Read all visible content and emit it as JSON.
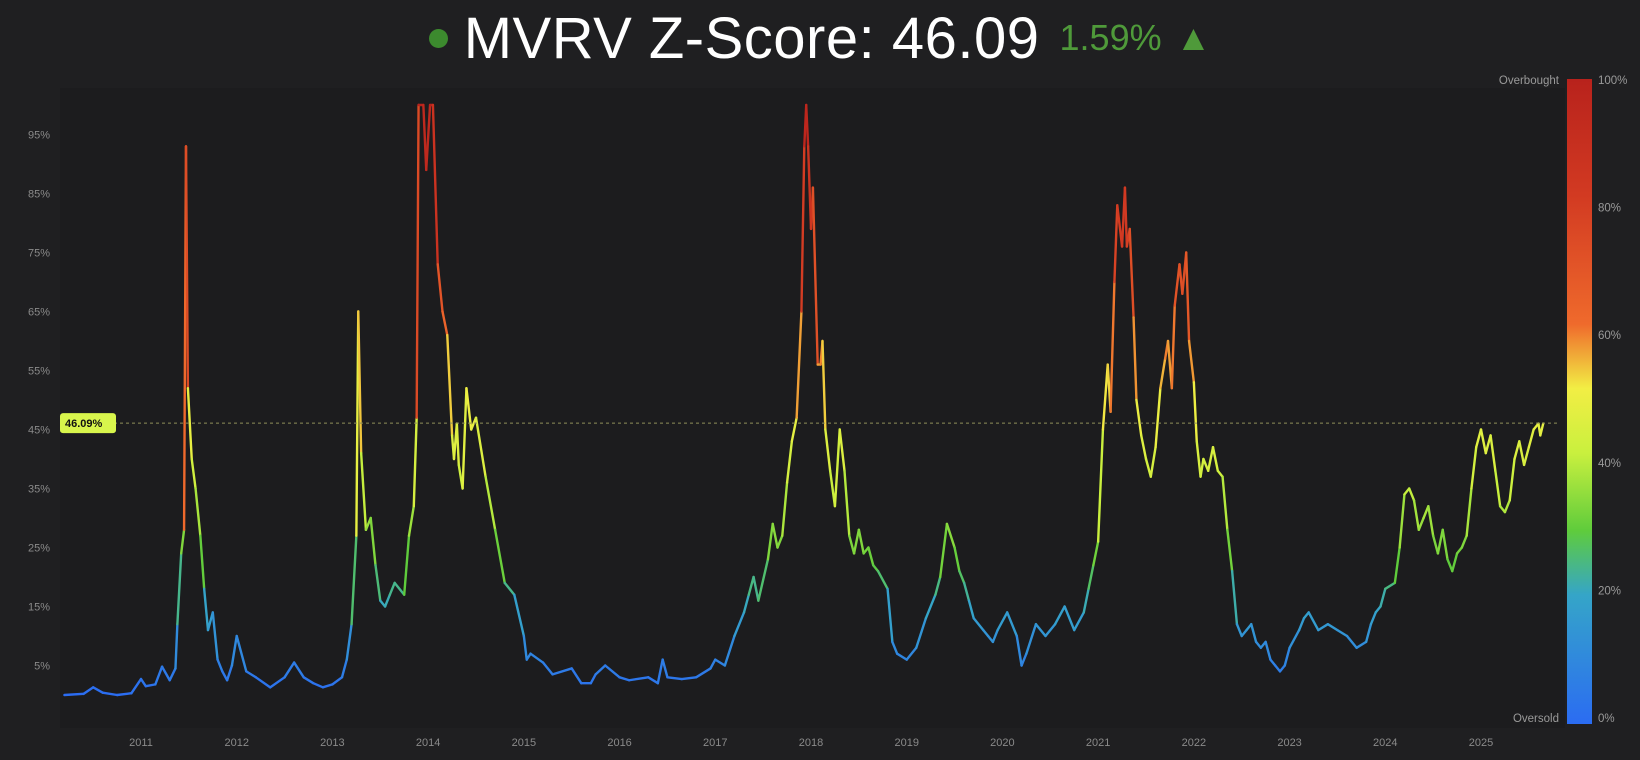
{
  "header": {
    "title_label": "MVRV Z-Score:",
    "title_value": "46.09",
    "change": "1.59%",
    "arrow": "▲",
    "accent_color": "#4f9a3a"
  },
  "chart_data": {
    "type": "line",
    "y_axis": {
      "ticks": [
        "5%",
        "15%",
        "25%",
        "35%",
        "45%",
        "55%",
        "65%",
        "75%",
        "85%",
        "95%"
      ],
      "ylim": [
        0,
        100
      ]
    },
    "x_axis": {
      "ticks": [
        "2011",
        "2012",
        "2013",
        "2014",
        "2015",
        "2016",
        "2017",
        "2018",
        "2019",
        "2020",
        "2021",
        "2022",
        "2023",
        "2024",
        "2025"
      ],
      "xlim": [
        2010.2,
        2025.85
      ]
    },
    "current_marker": {
      "value": 46.09,
      "label": "46.09%"
    },
    "colorbar": {
      "top_label": "Overbought",
      "bottom_label": "Oversold",
      "ticks": [
        "100%",
        "80%",
        "60%",
        "40%",
        "20%",
        "0%"
      ]
    },
    "colors": {
      "blue": "#2b6cf2",
      "green": "#5fcc3c",
      "yellow": "#f2ee44",
      "orange": "#ef6a2c",
      "red": "#b8221c"
    },
    "series": [
      {
        "points": [
          [
            2010.2,
            0
          ],
          [
            2010.4,
            0.2
          ],
          [
            2010.5,
            1.3
          ],
          [
            2010.6,
            0.4
          ],
          [
            2010.75,
            0
          ],
          [
            2010.9,
            0.3
          ],
          [
            2011.0,
            2.7
          ],
          [
            2011.05,
            1.5
          ],
          [
            2011.15,
            1.8
          ],
          [
            2011.22,
            4.8
          ],
          [
            2011.3,
            2.5
          ],
          [
            2011.36,
            4.5
          ],
          [
            2011.38,
            12
          ],
          [
            2011.42,
            24
          ],
          [
            2011.45,
            28
          ],
          [
            2011.47,
            93
          ],
          [
            2011.49,
            52
          ],
          [
            2011.53,
            40
          ],
          [
            2011.57,
            35
          ],
          [
            2011.62,
            27
          ],
          [
            2011.66,
            18
          ],
          [
            2011.7,
            11
          ],
          [
            2011.75,
            14
          ],
          [
            2011.8,
            6
          ],
          [
            2011.85,
            4
          ],
          [
            2011.9,
            2.5
          ],
          [
            2011.95,
            5
          ],
          [
            2012.0,
            10
          ],
          [
            2012.1,
            4
          ],
          [
            2012.2,
            3
          ],
          [
            2012.35,
            1.3
          ],
          [
            2012.5,
            3
          ],
          [
            2012.6,
            5.5
          ],
          [
            2012.7,
            3
          ],
          [
            2012.8,
            2
          ],
          [
            2012.9,
            1.3
          ],
          [
            2013.0,
            1.8
          ],
          [
            2013.1,
            3
          ],
          [
            2013.15,
            6
          ],
          [
            2013.2,
            12
          ],
          [
            2013.25,
            27
          ],
          [
            2013.27,
            65
          ],
          [
            2013.3,
            41
          ],
          [
            2013.35,
            28
          ],
          [
            2013.4,
            30
          ],
          [
            2013.45,
            22
          ],
          [
            2013.5,
            16
          ],
          [
            2013.55,
            15
          ],
          [
            2013.6,
            17
          ],
          [
            2013.65,
            19
          ],
          [
            2013.75,
            17
          ],
          [
            2013.8,
            27
          ],
          [
            2013.85,
            32
          ],
          [
            2013.88,
            47
          ],
          [
            2013.9,
            100
          ],
          [
            2013.95,
            100
          ],
          [
            2013.98,
            89
          ],
          [
            2014.02,
            100
          ],
          [
            2014.05,
            100
          ],
          [
            2014.1,
            73
          ],
          [
            2014.15,
            65
          ],
          [
            2014.2,
            61
          ],
          [
            2014.25,
            44
          ],
          [
            2014.27,
            40
          ],
          [
            2014.3,
            46
          ],
          [
            2014.32,
            39
          ],
          [
            2014.36,
            35
          ],
          [
            2014.4,
            52
          ],
          [
            2014.45,
            45
          ],
          [
            2014.5,
            47
          ],
          [
            2014.6,
            37
          ],
          [
            2014.7,
            28
          ],
          [
            2014.8,
            19
          ],
          [
            2014.9,
            17
          ],
          [
            2015.0,
            10
          ],
          [
            2015.03,
            6
          ],
          [
            2015.07,
            7
          ],
          [
            2015.2,
            5.5
          ],
          [
            2015.3,
            3.5
          ],
          [
            2015.5,
            4.5
          ],
          [
            2015.6,
            2
          ],
          [
            2015.7,
            2
          ],
          [
            2015.75,
            3.5
          ],
          [
            2015.85,
            5
          ],
          [
            2016.0,
            3
          ],
          [
            2016.1,
            2.5
          ],
          [
            2016.3,
            3
          ],
          [
            2016.4,
            2
          ],
          [
            2016.45,
            6
          ],
          [
            2016.5,
            3
          ],
          [
            2016.65,
            2.7
          ],
          [
            2016.8,
            3
          ],
          [
            2016.95,
            4.5
          ],
          [
            2017.0,
            6
          ],
          [
            2017.1,
            5
          ],
          [
            2017.2,
            10
          ],
          [
            2017.3,
            14
          ],
          [
            2017.35,
            17
          ],
          [
            2017.4,
            20
          ],
          [
            2017.45,
            16
          ],
          [
            2017.55,
            23
          ],
          [
            2017.6,
            29
          ],
          [
            2017.65,
            25
          ],
          [
            2017.7,
            27
          ],
          [
            2017.75,
            36
          ],
          [
            2017.8,
            43
          ],
          [
            2017.85,
            47
          ],
          [
            2017.9,
            65
          ],
          [
            2017.93,
            93
          ],
          [
            2017.95,
            100
          ],
          [
            2017.97,
            93
          ],
          [
            2018.0,
            79
          ],
          [
            2018.02,
            86
          ],
          [
            2018.07,
            56
          ],
          [
            2018.1,
            56
          ],
          [
            2018.12,
            60
          ],
          [
            2018.15,
            45
          ],
          [
            2018.2,
            38
          ],
          [
            2018.25,
            32
          ],
          [
            2018.3,
            45
          ],
          [
            2018.35,
            38
          ],
          [
            2018.4,
            27
          ],
          [
            2018.45,
            24
          ],
          [
            2018.5,
            28
          ],
          [
            2018.55,
            24
          ],
          [
            2018.6,
            25
          ],
          [
            2018.65,
            22
          ],
          [
            2018.7,
            21
          ],
          [
            2018.8,
            18
          ],
          [
            2018.85,
            9
          ],
          [
            2018.9,
            7
          ],
          [
            2019.0,
            6
          ],
          [
            2019.1,
            8
          ],
          [
            2019.2,
            13
          ],
          [
            2019.3,
            17
          ],
          [
            2019.35,
            20
          ],
          [
            2019.42,
            29
          ],
          [
            2019.5,
            25
          ],
          [
            2019.55,
            21
          ],
          [
            2019.6,
            19
          ],
          [
            2019.65,
            16
          ],
          [
            2019.7,
            13
          ],
          [
            2019.8,
            11
          ],
          [
            2019.85,
            10
          ],
          [
            2019.9,
            9
          ],
          [
            2019.95,
            11
          ],
          [
            2020.05,
            14
          ],
          [
            2020.15,
            10
          ],
          [
            2020.2,
            5
          ],
          [
            2020.25,
            7
          ],
          [
            2020.35,
            12
          ],
          [
            2020.45,
            10
          ],
          [
            2020.55,
            12
          ],
          [
            2020.65,
            15
          ],
          [
            2020.75,
            11
          ],
          [
            2020.85,
            14
          ],
          [
            2020.9,
            18
          ],
          [
            2020.95,
            22
          ],
          [
            2021.0,
            26
          ],
          [
            2021.05,
            45
          ],
          [
            2021.1,
            56
          ],
          [
            2021.13,
            48
          ],
          [
            2021.17,
            70
          ],
          [
            2021.2,
            83
          ],
          [
            2021.25,
            76
          ],
          [
            2021.28,
            86
          ],
          [
            2021.3,
            76
          ],
          [
            2021.33,
            79
          ],
          [
            2021.37,
            64
          ],
          [
            2021.4,
            50
          ],
          [
            2021.45,
            44
          ],
          [
            2021.5,
            40
          ],
          [
            2021.55,
            37
          ],
          [
            2021.6,
            42
          ],
          [
            2021.65,
            52
          ],
          [
            2021.7,
            57
          ],
          [
            2021.73,
            60
          ],
          [
            2021.77,
            52
          ],
          [
            2021.8,
            66
          ],
          [
            2021.85,
            73
          ],
          [
            2021.88,
            68
          ],
          [
            2021.92,
            75
          ],
          [
            2021.95,
            60
          ],
          [
            2022.0,
            53
          ],
          [
            2022.03,
            43
          ],
          [
            2022.07,
            37
          ],
          [
            2022.1,
            40
          ],
          [
            2022.15,
            38
          ],
          [
            2022.2,
            42
          ],
          [
            2022.25,
            38
          ],
          [
            2022.3,
            37
          ],
          [
            2022.35,
            28
          ],
          [
            2022.4,
            21
          ],
          [
            2022.45,
            12
          ],
          [
            2022.5,
            10
          ],
          [
            2022.55,
            11
          ],
          [
            2022.6,
            12
          ],
          [
            2022.65,
            9
          ],
          [
            2022.7,
            8
          ],
          [
            2022.75,
            9
          ],
          [
            2022.8,
            6
          ],
          [
            2022.85,
            5
          ],
          [
            2022.9,
            4
          ],
          [
            2022.95,
            5
          ],
          [
            2023.0,
            8
          ],
          [
            2023.1,
            11
          ],
          [
            2023.15,
            13
          ],
          [
            2023.2,
            14
          ],
          [
            2023.3,
            11
          ],
          [
            2023.4,
            12
          ],
          [
            2023.5,
            11
          ],
          [
            2023.6,
            10
          ],
          [
            2023.7,
            8
          ],
          [
            2023.8,
            9
          ],
          [
            2023.85,
            12
          ],
          [
            2023.9,
            14
          ],
          [
            2023.95,
            15
          ],
          [
            2024.0,
            18
          ],
          [
            2024.1,
            19
          ],
          [
            2024.15,
            25
          ],
          [
            2024.2,
            34
          ],
          [
            2024.25,
            35
          ],
          [
            2024.3,
            33
          ],
          [
            2024.35,
            28
          ],
          [
            2024.4,
            30
          ],
          [
            2024.45,
            32
          ],
          [
            2024.5,
            27
          ],
          [
            2024.55,
            24
          ],
          [
            2024.6,
            28
          ],
          [
            2024.65,
            23
          ],
          [
            2024.7,
            21
          ],
          [
            2024.75,
            24
          ],
          [
            2024.8,
            25
          ],
          [
            2024.85,
            27
          ],
          [
            2024.9,
            35
          ],
          [
            2024.95,
            42
          ],
          [
            2025.0,
            45
          ],
          [
            2025.05,
            41
          ],
          [
            2025.1,
            44
          ],
          [
            2025.15,
            38
          ],
          [
            2025.2,
            32
          ],
          [
            2025.25,
            31
          ],
          [
            2025.3,
            33
          ],
          [
            2025.35,
            40
          ],
          [
            2025.4,
            43
          ],
          [
            2025.45,
            39
          ],
          [
            2025.5,
            42
          ],
          [
            2025.55,
            45
          ],
          [
            2025.6,
            46
          ],
          [
            2025.62,
            44
          ],
          [
            2025.65,
            46
          ]
        ]
      }
    ]
  }
}
